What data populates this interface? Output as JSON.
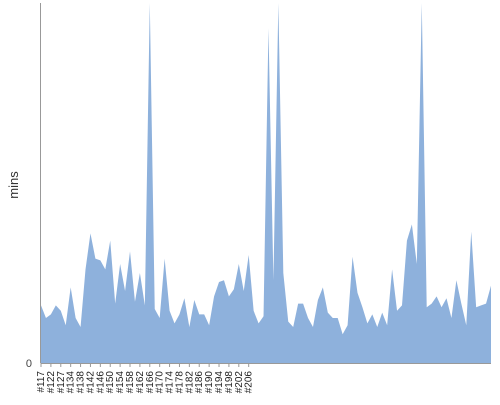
{
  "chart_data": {
    "type": "area",
    "ylabel": "mins",
    "xlabel": "",
    "title": "",
    "color": "#8eb1dc",
    "axis_color": "#999999",
    "ylim": [
      0,
      100
    ],
    "y_ticks": [
      0
    ],
    "x_tick_labels": [
      "#117",
      "#122",
      "#127",
      "#134",
      "#138",
      "#142",
      "#146",
      "#150",
      "#154",
      "#158",
      "#162",
      "#166",
      "#170",
      "#174",
      "#178",
      "#182",
      "#186",
      "#190",
      "#194",
      "#198",
      "#202",
      "#206"
    ],
    "values": [
      16,
      12.5,
      13.5,
      16,
      14.5,
      10.5,
      21,
      12.5,
      10,
      26,
      36,
      29,
      28.5,
      26,
      34,
      16.5,
      27.5,
      20,
      31,
      17,
      25,
      16,
      100,
      15,
      12.5,
      29,
      14.5,
      11,
      13.5,
      18,
      10,
      17.5,
      13.5,
      13.5,
      10.5,
      18.5,
      22.5,
      23,
      18.5,
      20.5,
      27.5,
      20,
      30,
      14.5,
      11,
      13,
      93,
      23,
      100,
      25,
      11.5,
      10,
      16.5,
      16.5,
      12.5,
      10,
      17.5,
      21,
      14,
      12.5,
      12.5,
      8,
      10.5,
      29.5,
      19.5,
      15.5,
      11,
      13.5,
      10,
      14,
      10.5,
      26,
      14.5,
      16,
      34,
      38.5,
      27.5,
      100,
      15.5,
      16.5,
      18.5,
      15.5,
      18,
      12.5,
      23,
      16.5,
      10.5,
      36.5,
      15.5,
      16,
      16.5,
      21.5
    ]
  }
}
